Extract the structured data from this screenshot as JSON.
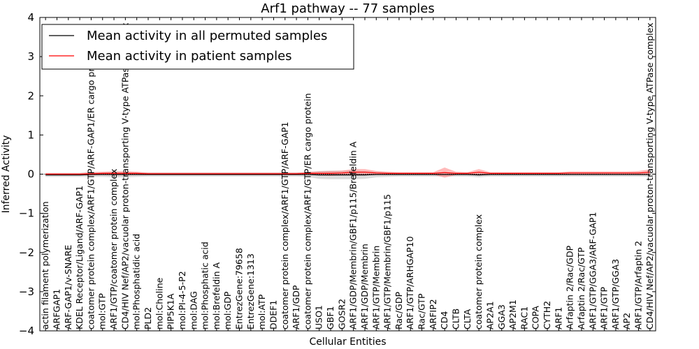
{
  "chart_data": {
    "type": "line",
    "title": "Arf1 pathway -- 77 samples",
    "xlabel": "Cellular Entities",
    "ylabel": "Inferred Activity",
    "ylim": [
      -4,
      4
    ],
    "yticks": [
      -4,
      -3,
      -2,
      -1,
      0,
      1,
      2,
      3,
      4
    ],
    "ytick_labels": [
      "−4",
      "−3",
      "−2",
      "−1",
      "0",
      "1",
      "2",
      "3",
      "4"
    ],
    "grid": false,
    "legend_position": "top-left",
    "categories": [
      "actin filament polymerization",
      "ARFGAP1",
      "ARF-GAP1/v-SNARE",
      "KDEL Receptor/Ligand/ARF-GAP1",
      "coatomer protein complex/ARF1/GTP/ARF-GAP1/ER cargo protein",
      "mol:GTP",
      "ARF1/GTP/coatomer protein complex",
      "CD4/HIV Nef/AP2/vacuolar proton-transporting V-type ATPase complex",
      "mol:Phosphatidic acid",
      "PLD2",
      "mol:Choline",
      "PIP5K1A",
      "mol:PI-4-5-P2",
      "mol:DAG",
      "mol:Phosphatic acid",
      "mol:Brefeldin A",
      "mol:GDP",
      "EntrezGene:79658",
      "EntrezGene:1313",
      "mol:ATP",
      "DDEF1",
      "coatomer protein complex/ARF1/GTP/ARF-GAP1",
      "ARF1/GDP",
      "coatomer protein complex/ARF1/GTP/ER cargo protein",
      "USO1",
      "GBF1",
      "GOSR2",
      "ARF1/GDP/Membrin/GBF1/p115/Brefeldin A",
      "ARF1/GDP/Membrin",
      "ARF1/GTP/Membrin",
      "ARF1/GTP/Membrin/GBF1/p115",
      "Rac/GDP",
      "ARF1/GTP/ARHGAP10",
      "Rac/GTP",
      "ARFIP2",
      "CD4",
      "CLTB",
      "CLTA",
      "coatomer protein complex",
      "AP2A1",
      "GGA3",
      "AP2M1",
      "RAC1",
      "COPA",
      "CYTH2",
      "ARF1",
      "Arfaptin 2/Rac/GDP",
      "Arfaptin 2/Rac/GTP",
      "ARF1/GTP/GGA3/ARF-GAP1",
      "ARF1/GTP",
      "ARF1/GTP/GGA3",
      "AP2",
      "ARF1/GTP/Arfaptin 2",
      "CD4/HIV Nef/AP2/vacuolar proton-transporting V-type ATPase complex"
    ],
    "series": [
      {
        "name": "Mean activity in all permuted samples",
        "color": "#000000",
        "values": [
          -0.02,
          -0.02,
          -0.02,
          -0.02,
          -0.01,
          -0.01,
          -0.01,
          -0.01,
          -0.01,
          -0.01,
          -0.01,
          -0.01,
          -0.01,
          -0.01,
          -0.01,
          -0.01,
          -0.01,
          -0.01,
          -0.01,
          -0.01,
          -0.01,
          -0.01,
          -0.01,
          -0.01,
          -0.02,
          -0.02,
          -0.02,
          -0.02,
          -0.02,
          -0.01,
          -0.01,
          -0.01,
          -0.01,
          -0.01,
          -0.01,
          -0.01,
          -0.01,
          -0.01,
          -0.02,
          -0.01,
          -0.01,
          -0.01,
          -0.01,
          -0.01,
          -0.01,
          -0.01,
          -0.01,
          -0.01,
          -0.01,
          -0.01,
          -0.01,
          -0.01,
          -0.01,
          -0.01
        ],
        "band_half_width": [
          0.05,
          0.05,
          0.05,
          0.05,
          0.06,
          0.06,
          0.07,
          0.07,
          0.06,
          0.05,
          0.05,
          0.05,
          0.05,
          0.05,
          0.05,
          0.05,
          0.05,
          0.05,
          0.05,
          0.05,
          0.05,
          0.05,
          0.05,
          0.06,
          0.1,
          0.11,
          0.11,
          0.11,
          0.1,
          0.07,
          0.06,
          0.05,
          0.05,
          0.05,
          0.05,
          0.05,
          0.05,
          0.05,
          0.06,
          0.05,
          0.05,
          0.05,
          0.05,
          0.05,
          0.05,
          0.05,
          0.05,
          0.05,
          0.05,
          0.05,
          0.05,
          0.05,
          0.05,
          0.06
        ]
      },
      {
        "name": "Mean activity in patient samples",
        "color": "#ff0000",
        "values": [
          0.0,
          0.0,
          0.0,
          0.0,
          0.01,
          0.02,
          0.02,
          0.02,
          0.02,
          0.01,
          0.01,
          0.01,
          0.01,
          0.01,
          0.01,
          0.01,
          0.01,
          0.01,
          0.01,
          0.01,
          0.01,
          0.01,
          0.01,
          0.02,
          0.02,
          0.02,
          0.03,
          0.05,
          0.05,
          0.03,
          0.02,
          0.02,
          0.02,
          0.02,
          0.02,
          0.04,
          0.02,
          0.02,
          0.05,
          0.02,
          0.02,
          0.02,
          0.02,
          0.02,
          0.02,
          0.02,
          0.03,
          0.03,
          0.03,
          0.03,
          0.03,
          0.03,
          0.03,
          0.05
        ],
        "band_half_width": [
          0.03,
          0.03,
          0.03,
          0.03,
          0.04,
          0.04,
          0.05,
          0.05,
          0.04,
          0.03,
          0.03,
          0.03,
          0.03,
          0.03,
          0.03,
          0.03,
          0.03,
          0.03,
          0.03,
          0.03,
          0.03,
          0.03,
          0.03,
          0.04,
          0.05,
          0.06,
          0.06,
          0.08,
          0.08,
          0.05,
          0.04,
          0.03,
          0.03,
          0.03,
          0.03,
          0.13,
          0.04,
          0.03,
          0.08,
          0.03,
          0.03,
          0.03,
          0.03,
          0.03,
          0.03,
          0.03,
          0.04,
          0.04,
          0.04,
          0.04,
          0.04,
          0.04,
          0.05,
          0.07
        ]
      }
    ]
  }
}
